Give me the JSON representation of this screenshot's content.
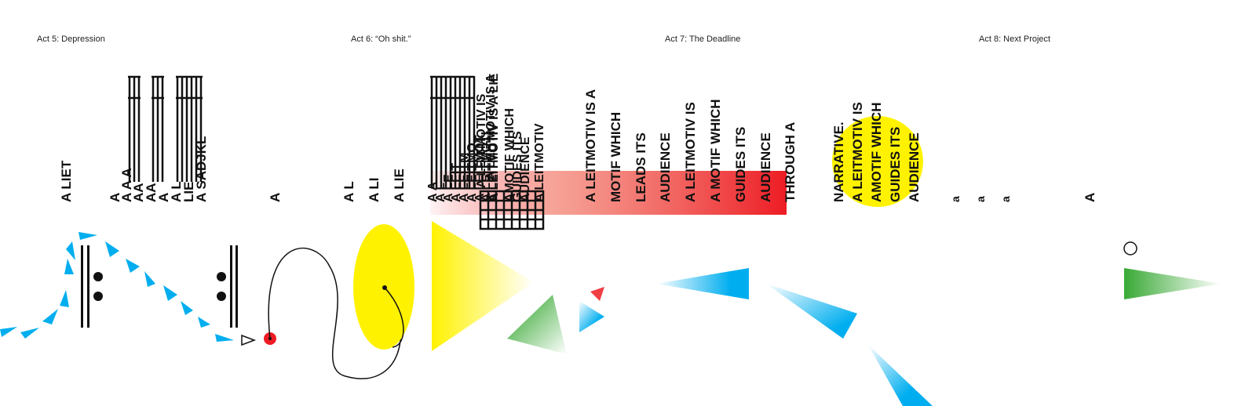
{
  "acts": [
    {
      "label": "Act 5: Depression"
    },
    {
      "label": "Act 6: “Oh shit.”"
    },
    {
      "label": "Act 7: The Deadline"
    },
    {
      "label": "Act 8: Next Project"
    }
  ],
  "act5": {
    "liet": "A LIET",
    "stack_a": [
      "A",
      "A A A",
      "AA",
      "AA",
      "A",
      "A L",
      "LIE",
      "A SADJKL"
    ],
    "lone_a": "A"
  },
  "act6": {
    "words": [
      "A L",
      "A LI",
      "A LIE"
    ],
    "stack": [
      "A A",
      "A L",
      "A LE",
      "A LEIT",
      "A LEITM",
      "A LEITMO",
      "A LEITMOT",
      "A LEITMOTI",
      "A LEITMOTIV",
      "A LEITMOTIV IS",
      "A LEITMOTIV IS A",
      "A LEITMOTIV IS A LIE",
      "AMOTIF WHICH",
      "GUIDES ITS",
      "AUDIENCE",
      "A LEITMOTIV"
    ]
  },
  "act7": {
    "words": [
      "A LEITMOTIV IS A",
      "MOTIF WHICH",
      "LEADS ITS",
      "AUDIENCE",
      "A LEITMOTIV IS",
      "A MOTIF WHICH",
      "GUIDES ITS",
      "AUDIENCE",
      "THROUGH A"
    ],
    "narrative": [
      "NARRATIVE.",
      "A LEITMOTIV IS",
      "AMOTIF WHICH",
      "GUIDES ITS",
      "AUDIENCE"
    ]
  },
  "act8": {
    "small": [
      "a",
      "a",
      "a"
    ],
    "big": "A"
  },
  "colors": {
    "blue": "#00aeef",
    "yellow": "#fff200",
    "red": "#ed1c24",
    "green": "#39a935",
    "ink": "#111111"
  }
}
